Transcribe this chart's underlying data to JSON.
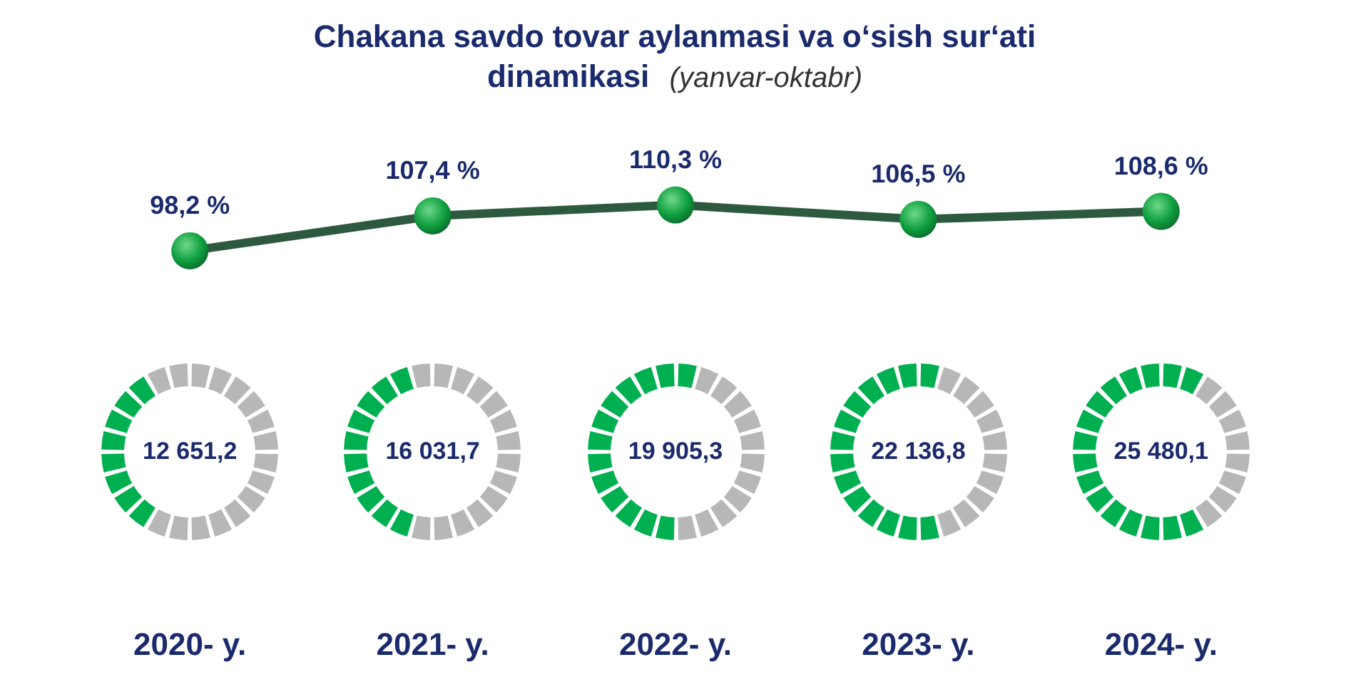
{
  "chart_data": [
    {
      "type": "line",
      "title": "Chakana savdo tovar aylanmasi va oʻsish surʻati dinamikasi",
      "subtitle": "(yanvar-oktabr)",
      "categories": [
        "2020- y.",
        "2021- y.",
        "2022- y.",
        "2023- y.",
        "2024- y."
      ],
      "series": [
        {
          "color": "#2d5a3f",
          "values": [
            98.2,
            107.4,
            110.3,
            106.5,
            108.6
          ],
          "value_labels": [
            "98,2 %",
            "107,4 %",
            "110,3 %",
            "106,5 %",
            "108,6 %"
          ]
        }
      ],
      "marker": "circle",
      "grid": false,
      "tick_labels": "x"
    },
    {
      "type": "other",
      "values": [
        12651.2,
        16031.7,
        19905.3,
        22136.8,
        25480.1
      ],
      "value_labels": [
        "12 651,2",
        "16 031,7",
        "19 905,3",
        "22 136,8",
        "25 480,1"
      ]
    }
  ]
}
